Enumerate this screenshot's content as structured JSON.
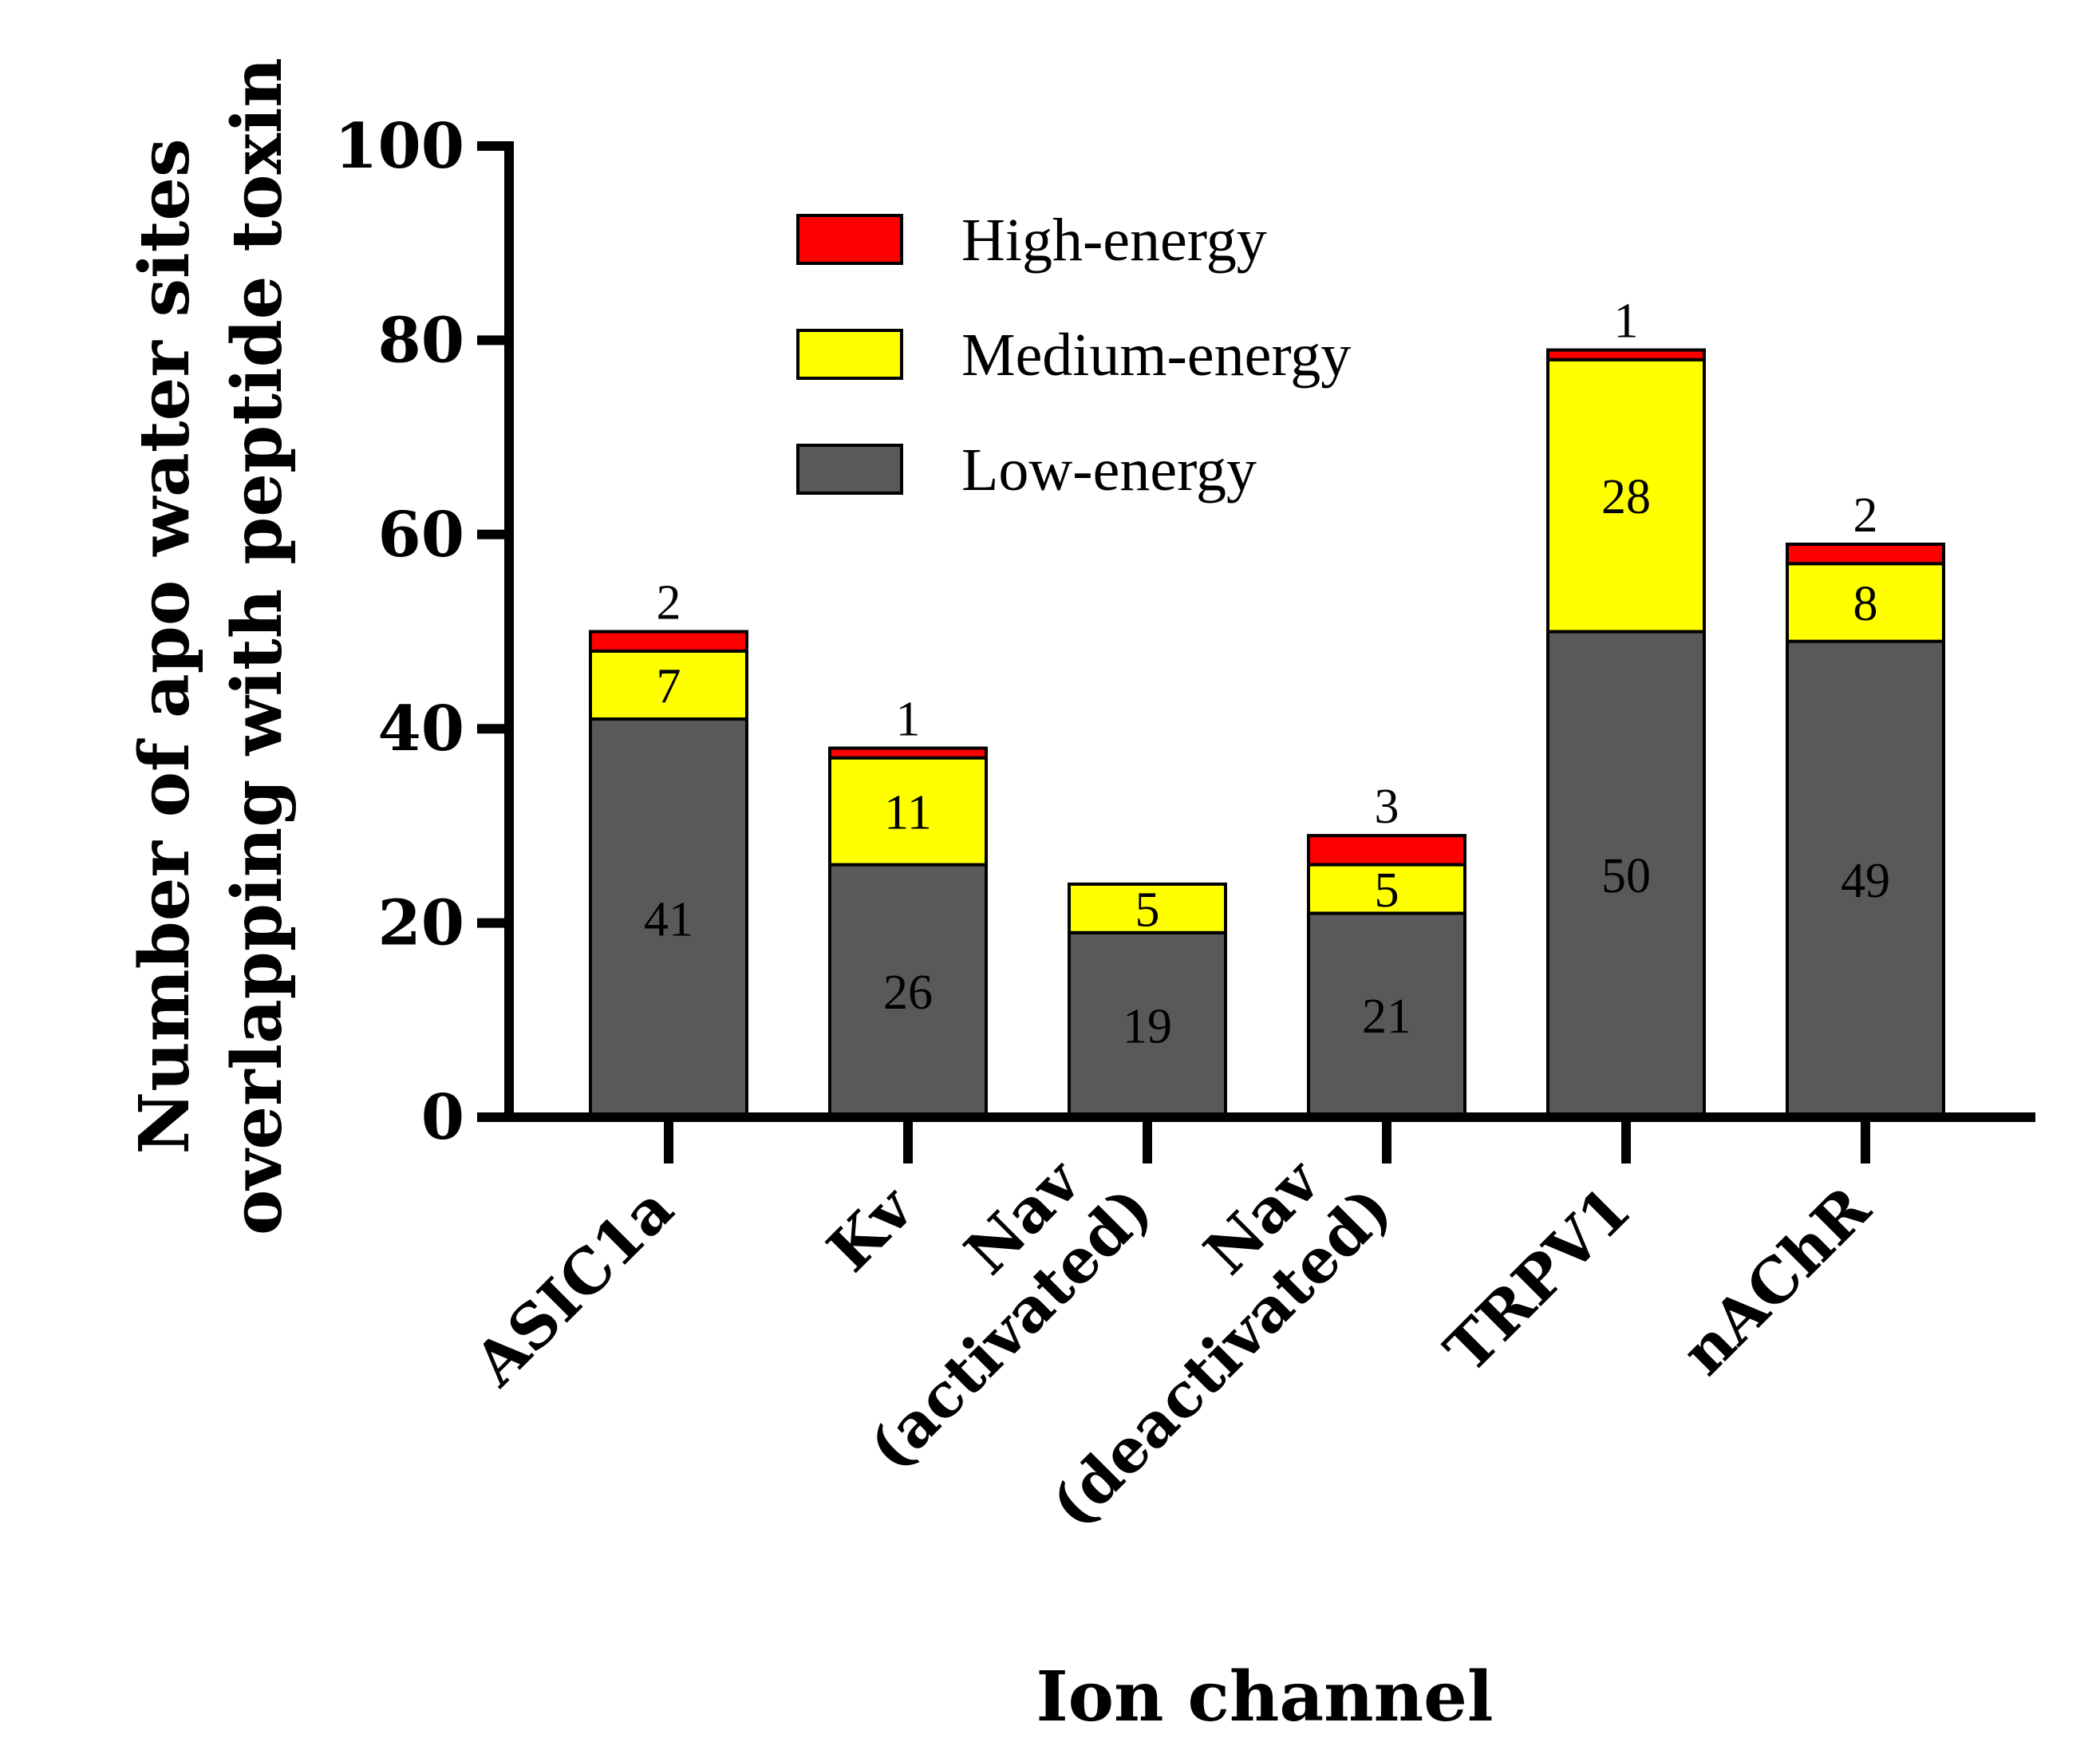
{
  "chart_data": {
    "type": "bar",
    "stacked": true,
    "title": "",
    "xlabel": "Ion channel",
    "ylabel_lines": [
      "Number of apo water sites",
      "overlapping with peptide toxin"
    ],
    "ylim": [
      0,
      100
    ],
    "yticks": [
      0,
      20,
      40,
      60,
      80,
      100
    ],
    "categories": [
      {
        "lines": [
          "ASIC1a"
        ]
      },
      {
        "lines": [
          "Kv"
        ]
      },
      {
        "lines": [
          "Nav",
          "(activated)"
        ]
      },
      {
        "lines": [
          "Nav",
          "(deactivated)"
        ]
      },
      {
        "lines": [
          "TRPV1"
        ]
      },
      {
        "lines": [
          "nAChR"
        ]
      }
    ],
    "series": [
      {
        "name": "Low-energy",
        "color": "#595959",
        "values": [
          41,
          26,
          19,
          21,
          50,
          49
        ],
        "labels": [
          "41",
          "26",
          "19",
          "21",
          "50",
          "49"
        ]
      },
      {
        "name": "Medium-energy",
        "color": "#ffff00",
        "values": [
          7,
          11,
          5,
          5,
          28,
          8
        ],
        "labels": [
          "7",
          "11",
          "5",
          "5",
          "28",
          "8"
        ]
      },
      {
        "name": "High-energy",
        "color": "#ff0000",
        "values": [
          2,
          1,
          0,
          3,
          1,
          2
        ],
        "labels": [
          "2",
          "1",
          "",
          "3",
          "1",
          "2"
        ]
      }
    ],
    "legend": {
      "position": "top-center",
      "order": [
        "High-energy",
        "Medium-energy",
        "Low-energy"
      ]
    }
  }
}
